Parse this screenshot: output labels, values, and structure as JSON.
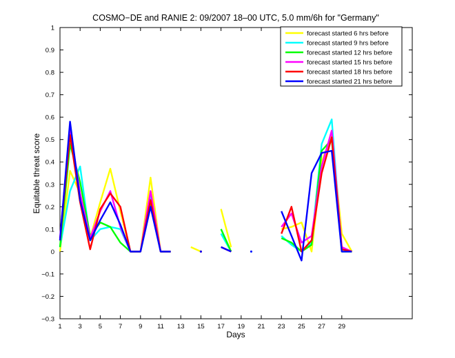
{
  "chart_data": {
    "type": "line",
    "title": "COSMO−DE and RANIE 2: 09/2007 18–00 UTC, 5.0 mm/6h for \"Germany\"",
    "xlabel": "Days",
    "ylabel": "Equitable threat score",
    "xlim": [
      1,
      36
    ],
    "ylim": [
      -0.3,
      1
    ],
    "x_ticks": [
      1,
      3,
      5,
      7,
      9,
      11,
      13,
      15,
      17,
      19,
      21,
      23,
      25,
      27,
      29
    ],
    "y_ticks": [
      -0.3,
      -0.2,
      -0.1,
      0,
      0.1,
      0.2,
      0.3,
      0.4,
      0.5,
      0.6,
      0.7,
      0.8,
      0.9,
      1
    ],
    "y_tick_labels": [
      "−0.3",
      "−0.2",
      "−0.1",
      "0",
      "0.1",
      "0.2",
      "0.3",
      "0.4",
      "0.5",
      "0.6",
      "0.7",
      "0.8",
      "0.9",
      "1"
    ],
    "grid": false,
    "legend_position": "top-right",
    "x": [
      1,
      2,
      3,
      4,
      5,
      6,
      7,
      8,
      9,
      10,
      11,
      12,
      13,
      14,
      15,
      16,
      17,
      18,
      19,
      20,
      21,
      22,
      23,
      24,
      25,
      26,
      27,
      28,
      29,
      30
    ],
    "series": [
      {
        "name": "forecast started 6 hrs before",
        "color": "#ffff00",
        "values": [
          0.0,
          0.36,
          0.26,
          0.06,
          0.22,
          0.37,
          0.18,
          0.0,
          0.0,
          0.33,
          0.0,
          0.0,
          null,
          0.02,
          0.0,
          null,
          0.19,
          0.02,
          null,
          null,
          null,
          null,
          0.1,
          0.11,
          0.13,
          0.0,
          0.4,
          0.52,
          0.08,
          0.0
        ]
      },
      {
        "name": "forecast started 9 hrs before",
        "color": "#00ffff",
        "values": [
          0.02,
          0.27,
          0.38,
          0.05,
          0.1,
          0.11,
          0.1,
          0.0,
          0.0,
          0.25,
          0.0,
          0.0,
          null,
          null,
          0.0,
          null,
          0.08,
          0.0,
          null,
          0.0,
          null,
          null,
          0.07,
          0.03,
          0.0,
          0.04,
          0.48,
          0.59,
          0.0,
          0.0
        ]
      },
      {
        "name": "forecast started 12 hrs before",
        "color": "#00ff00",
        "values": [
          0.02,
          0.48,
          0.31,
          0.07,
          0.13,
          0.11,
          0.04,
          0.0,
          0.0,
          0.21,
          0.0,
          0.0,
          null,
          null,
          0.0,
          null,
          0.1,
          0.0,
          null,
          null,
          null,
          null,
          0.06,
          0.04,
          0.0,
          0.03,
          0.45,
          0.5,
          0.0,
          0.0
        ]
      },
      {
        "name": "forecast started 15 hrs before",
        "color": "#ff00ff",
        "values": [
          0.06,
          0.55,
          0.26,
          0.06,
          0.18,
          0.27,
          0.11,
          0.0,
          0.0,
          0.27,
          0.0,
          0.0,
          null,
          null,
          0.0,
          null,
          0.02,
          0.0,
          null,
          null,
          null,
          null,
          0.11,
          0.17,
          0.04,
          0.07,
          0.38,
          0.54,
          0.02,
          0.0
        ]
      },
      {
        "name": "forecast started 18 hrs before",
        "color": "#ff0000",
        "values": [
          0.05,
          0.52,
          0.22,
          0.01,
          0.19,
          0.26,
          0.2,
          0.0,
          0.0,
          0.23,
          0.0,
          0.0,
          null,
          null,
          0.0,
          null,
          0.02,
          0.0,
          null,
          null,
          null,
          null,
          0.08,
          0.2,
          0.0,
          0.05,
          0.35,
          0.51,
          0.01,
          0.0
        ]
      },
      {
        "name": "forecast started 21 hrs before",
        "color": "#0000ff",
        "values": [
          0.05,
          0.58,
          0.23,
          0.05,
          0.14,
          0.22,
          0.12,
          0.0,
          0.0,
          0.2,
          0.0,
          0.0,
          null,
          null,
          0.0,
          null,
          0.02,
          0.0,
          null,
          0.0,
          null,
          null,
          0.18,
          0.07,
          -0.04,
          0.35,
          0.44,
          0.45,
          0.0,
          0.0
        ]
      }
    ]
  }
}
